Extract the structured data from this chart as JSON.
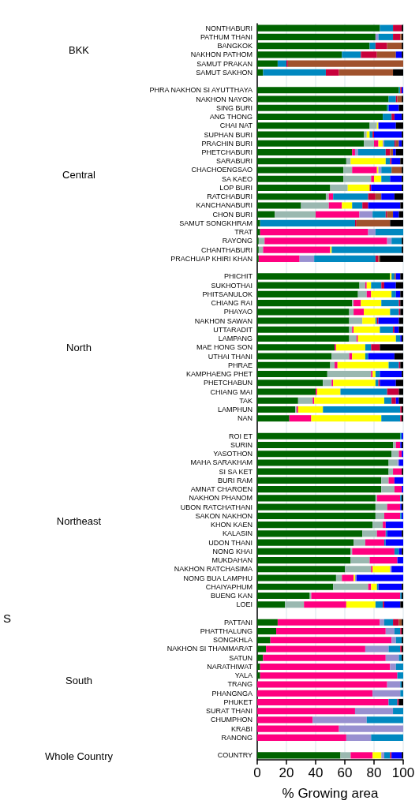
{
  "chart_data": {
    "type": "bar",
    "orientation": "horizontal",
    "stacked": true,
    "xlabel": "% Growing area",
    "annotations": [
      "BKK",
      "Central",
      "North",
      "Northeast",
      "South",
      "Whole Country",
      "S"
    ],
    "categories": [
      "NONTHABURI",
      "PATHUM THANI",
      "BANGKOK",
      "NAKHON PATHOM",
      "SAMUT PRAKAN",
      "SAMUT SAKHON",
      null,
      "PHRA NAKHON SI AYUTTHAYA",
      "NAKHON NAYOK",
      "SING BURI",
      "ANG THONG",
      "CHAI NAT",
      "SUPHAN BURI",
      "PRACHIN BURI",
      "PHETCHABURI",
      "SARABURI",
      "CHACHOENGSAO",
      "SA KAEO",
      "LOP BURI",
      "RATCHABURI",
      "KANCHANABURI",
      "CHON BURI",
      "SAMUT SONGKHRAM",
      "TRAT",
      "RAYONG",
      "CHANTHABURI",
      "PRACHUAP KHIRI KHAN",
      null,
      "PHICHIT",
      "SUKHOTHAI",
      "PHITSANULOK",
      "CHIANG RAI",
      "PHAYAO",
      "NAKHON SAWAN",
      "UTTARADIT",
      "LAMPANG",
      "MAE HONG SON",
      "UTHAI THANI",
      "PHRAE",
      "KAMPHAENG PHET",
      "PHETCHABUN",
      "CHIANG MAI",
      "TAK",
      "LAMPHUN",
      "NAN",
      null,
      "ROI ET",
      "SURIN",
      "YASOTHON",
      "MAHA SARAKHAM",
      "SI SA KET",
      "BURI RAM",
      "AMNAT CHAROEN",
      "NAKHON PHANOM",
      "UBON RATCHATHANI",
      "SAKON NAKHON",
      "KHON KAEN",
      "KALASIN",
      "UDON THANI",
      "NONG KHAI",
      "MUKDAHAN",
      "NAKHON RATCHASIMA",
      "NONG BUA LAMPHU",
      "CHAIYAPHUM",
      "BUENG KAN",
      "LOEI",
      null,
      "PATTANI",
      "PHATTHALUNG",
      "SONGKHLA",
      "NAKHON SI THAMMARAT",
      "SATUN",
      "NARATHIWAT",
      "YALA",
      "TRANG",
      "PHANGNGA",
      "PHUKET",
      "SURAT THANI",
      "CHUMPHON",
      "KRABI",
      "RANONG",
      null,
      "COUNTRY"
    ],
    "series": [
      {
        "color": "#006400",
        "values": [
          84,
          81,
          77,
          58,
          14,
          4,
          null,
          97,
          90,
          89,
          86,
          77,
          73,
          73,
          65,
          61,
          59,
          59,
          50,
          47,
          30,
          12,
          2,
          2,
          1,
          1,
          1,
          null,
          91,
          70,
          69,
          65,
          63,
          63,
          63,
          63,
          53,
          51,
          50,
          48,
          45,
          40,
          28,
          26,
          22,
          null,
          98,
          93,
          92,
          90,
          90,
          85,
          85,
          81,
          81,
          81,
          79,
          72,
          66,
          64,
          64,
          60,
          54,
          52,
          36,
          19,
          null,
          14,
          13,
          9,
          6,
          4,
          2,
          2,
          0,
          0,
          0,
          0,
          0,
          0,
          0,
          null,
          57
        ]
      },
      {
        "color": "#9ab8b0",
        "values": [
          0,
          0,
          0,
          0,
          0,
          0,
          null,
          0,
          0,
          0,
          0,
          5,
          2,
          7,
          0,
          3,
          6,
          19,
          12,
          2,
          19,
          28,
          0,
          0,
          4,
          3,
          0,
          null,
          0,
          4,
          6,
          1,
          3,
          9,
          2,
          5,
          0,
          12,
          3,
          30,
          6,
          0,
          10,
          1,
          0,
          null,
          0,
          2,
          5,
          6,
          3,
          5,
          9,
          1,
          8,
          6,
          7,
          10,
          8,
          1,
          13,
          18,
          4,
          24,
          1,
          13,
          null,
          0,
          0,
          0,
          0,
          0,
          0,
          0,
          0,
          0,
          0,
          0,
          0,
          0,
          0,
          null,
          7
        ]
      },
      {
        "color": "#ff0080",
        "values": [
          0,
          0,
          0,
          0,
          0,
          0,
          null,
          0,
          0,
          0,
          0,
          0,
          0,
          3,
          2,
          0,
          17,
          2,
          0,
          3,
          9,
          30,
          0,
          74,
          84,
          46,
          28,
          null,
          0,
          1,
          3,
          5,
          7,
          0,
          1,
          1,
          1,
          2,
          2,
          1,
          1,
          1,
          1,
          1,
          15,
          null,
          0,
          3,
          2,
          0,
          6,
          4,
          5,
          16,
          9,
          11,
          2,
          6,
          13,
          29,
          19,
          1,
          8,
          2,
          61,
          29,
          null,
          70,
          75,
          83,
          68,
          84,
          89,
          94,
          89,
          79,
          90,
          67,
          38,
          56,
          61,
          null,
          15
        ]
      },
      {
        "color": "#ffff00",
        "values": [
          0,
          0,
          0,
          0,
          0,
          0,
          null,
          0,
          0,
          0,
          0,
          1,
          2,
          3,
          0,
          24,
          1,
          5,
          15,
          0,
          7,
          0,
          0,
          0,
          0,
          1,
          0,
          null,
          1,
          3,
          14,
          14,
          18,
          9,
          18,
          26,
          20,
          9,
          35,
          2,
          29,
          16,
          48,
          17,
          48,
          null,
          0,
          0,
          0,
          0,
          0,
          0,
          0,
          0,
          0,
          0,
          0,
          0,
          0,
          0,
          0,
          12,
          1,
          4,
          0,
          20,
          null,
          0,
          0,
          0,
          0,
          0,
          0,
          0,
          0,
          0,
          0,
          0,
          0,
          0,
          0,
          null,
          6
        ]
      },
      {
        "color": "#9890d0",
        "values": [
          0,
          2,
          0,
          0,
          0,
          0,
          null,
          0,
          0,
          0,
          0,
          0,
          0,
          1,
          2,
          0,
          2,
          0,
          0,
          0,
          0,
          9,
          0,
          5,
          3,
          0,
          10,
          null,
          0,
          0,
          0,
          0,
          0,
          0,
          0,
          0,
          0,
          0,
          0,
          0,
          0,
          0,
          0,
          0,
          0,
          null,
          0,
          0,
          0,
          1,
          0,
          0,
          0,
          0,
          0,
          0,
          0,
          0,
          0,
          0,
          0,
          1,
          1,
          0,
          0,
          0,
          null,
          3,
          6,
          3,
          16,
          9,
          4,
          0,
          9,
          19,
          0,
          26,
          37,
          44,
          17,
          null,
          2
        ]
      },
      {
        "color": "#0088c0",
        "values": [
          9,
          10,
          4,
          13,
          6,
          43,
          null,
          1,
          5,
          1,
          6,
          0,
          2,
          7,
          19,
          3,
          7,
          6,
          0,
          24,
          7,
          9,
          65,
          19,
          7,
          48,
          42,
          null,
          2,
          7,
          3,
          12,
          6,
          1,
          9,
          3,
          4,
          2,
          7,
          3,
          2,
          32,
          5,
          53,
          13,
          null,
          1,
          0,
          0,
          0,
          0,
          0,
          0,
          1,
          0,
          1,
          0,
          1,
          1,
          3,
          0,
          0,
          0,
          1,
          1,
          5,
          null,
          6,
          4,
          4,
          8,
          2,
          5,
          4,
          1,
          2,
          6,
          7,
          25,
          0,
          22,
          null,
          4
        ]
      },
      {
        "color": "#c8003c",
        "values": [
          6,
          5,
          8,
          11,
          1,
          9,
          null,
          1,
          1,
          0,
          2,
          0,
          1,
          1,
          3,
          1,
          0,
          0,
          1,
          5,
          4,
          1,
          1,
          0,
          0,
          0,
          2,
          null,
          0,
          2,
          0,
          1,
          1,
          1,
          1,
          0,
          6,
          0,
          1,
          0,
          1,
          8,
          3,
          1,
          1,
          null,
          0,
          0,
          0,
          0,
          0,
          0,
          0,
          0,
          0,
          0,
          0,
          0,
          0,
          0,
          0,
          0,
          0,
          0,
          0,
          1,
          null,
          4,
          1,
          0,
          1,
          0,
          0,
          0,
          0,
          0,
          1,
          0,
          0,
          0,
          0,
          null,
          1
        ]
      },
      {
        "color": "#a0522d",
        "values": [
          0,
          1,
          10,
          13,
          79,
          37,
          null,
          0,
          3,
          0,
          0,
          0,
          0,
          2,
          2,
          0,
          7,
          0,
          0,
          4,
          0,
          4,
          23,
          0,
          0,
          0,
          1,
          null,
          1,
          0,
          0,
          0,
          0,
          0,
          0,
          0,
          0,
          0,
          0,
          0,
          0,
          0,
          0,
          0,
          0,
          null,
          0,
          0,
          0,
          0,
          0,
          0,
          0,
          0,
          0,
          0,
          0,
          0,
          0,
          0,
          0,
          0,
          0,
          0,
          0,
          0,
          null,
          2,
          0,
          0,
          0,
          0,
          0,
          0,
          0,
          0,
          0,
          0,
          0,
          0,
          0,
          null,
          0
        ]
      },
      {
        "color": "#0000ff",
        "values": [
          0,
          0,
          0,
          4,
          0,
          0,
          null,
          1,
          0,
          7,
          5,
          12,
          19,
          2,
          2,
          6,
          0,
          8,
          21,
          9,
          22,
          4,
          0,
          0,
          0,
          0,
          0,
          null,
          3,
          8,
          3,
          0,
          0,
          14,
          3,
          1,
          0,
          18,
          0,
          15,
          11,
          0,
          2,
          0,
          0,
          null,
          1,
          1,
          1,
          3,
          0,
          6,
          1,
          0,
          1,
          1,
          12,
          10,
          12,
          2,
          4,
          8,
          32,
          16,
          0,
          11,
          null,
          0,
          0,
          0,
          0,
          0,
          0,
          0,
          0,
          0,
          0,
          0,
          0,
          0,
          0,
          null,
          7
        ]
      },
      {
        "color": "#000000",
        "values": [
          1,
          1,
          1,
          1,
          0,
          7,
          null,
          0,
          1,
          3,
          1,
          5,
          1,
          1,
          5,
          2,
          1,
          1,
          1,
          6,
          2,
          3,
          9,
          0,
          1,
          1,
          16,
          null,
          2,
          5,
          2,
          2,
          2,
          3,
          3,
          1,
          16,
          6,
          2,
          1,
          5,
          3,
          3,
          1,
          1,
          null,
          0,
          1,
          0,
          0,
          1,
          0,
          0,
          1,
          1,
          0,
          0,
          1,
          0,
          1,
          0,
          0,
          0,
          1,
          1,
          2,
          null,
          1,
          1,
          1,
          1,
          1,
          0,
          0,
          1,
          0,
          3,
          0,
          0,
          0,
          0,
          null,
          1
        ]
      }
    ],
    "xlim": [
      0,
      100
    ],
    "xticks": [
      0,
      20,
      40,
      60,
      80,
      100
    ],
    "grid": "x"
  }
}
